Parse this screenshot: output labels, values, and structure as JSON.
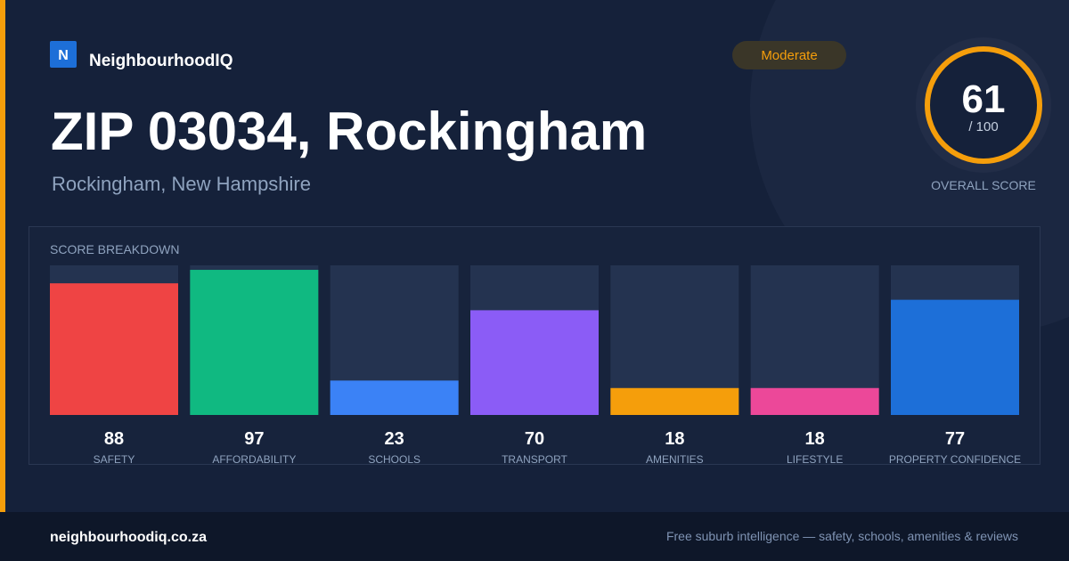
{
  "brand": {
    "logo": "N",
    "name": "NeighbourhoodIQ"
  },
  "header": {
    "title": "ZIP 03034, Rockingham",
    "subtitle": "Rockingham, New Hampshire",
    "badge": "Moderate"
  },
  "score": {
    "value": "61",
    "suffix": "/ 100",
    "label": "OVERALL SCORE"
  },
  "chart_data": {
    "type": "bar",
    "title": "SCORE BREAKDOWN",
    "categories": [
      "SAFETY",
      "AFFORDABILITY",
      "SCHOOLS",
      "TRANSPORT",
      "AMENITIES",
      "LIFESTYLE",
      "PROPERTY CONFIDENCE"
    ],
    "values": [
      88,
      97,
      23,
      70,
      18,
      18,
      77
    ],
    "colors": [
      "#ef4444",
      "#10b981",
      "#3b82f6",
      "#8b5cf6",
      "#f59e0b",
      "#ec4899",
      "#1d6fd8"
    ],
    "ylim": [
      0,
      100
    ]
  },
  "footer": {
    "site": "neighbourhoodiq.co.za",
    "tagline": "Free suburb intelligence — safety, schools, amenities & reviews"
  }
}
